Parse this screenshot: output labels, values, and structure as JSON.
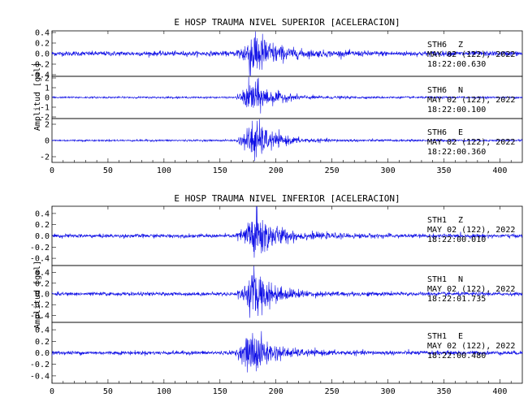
{
  "chart_data": [
    {
      "type": "line",
      "title": "E HOSP TRAUMA NIVEL SUPERIOR [ACELERACION]",
      "ylabel": "Amplitud [gal]",
      "xlim": [
        0,
        420
      ],
      "x_ticks": [
        "0",
        "50",
        "100",
        "150",
        "200",
        "250",
        "300",
        "350",
        "400"
      ],
      "series": [
        {
          "station": "STH6",
          "component": "Z",
          "date": "MAY 02 (122), 2022",
          "time": "18:22:00.630",
          "ylim": [
            -0.4,
            0.4
          ],
          "y_ticks": [
            "0.4",
            "0.2",
            "0.0",
            "-0.2",
            "-0.4"
          ],
          "onset": 165,
          "peak_time": 181,
          "peak_amplitude": 0.45,
          "noise_level": 0.04,
          "color": "#1010e6"
        },
        {
          "station": "STH6",
          "component": "N",
          "date": "MAY 02 (122), 2022",
          "time": "18:22:00.100",
          "ylim": [
            -2,
            2
          ],
          "y_ticks": [
            "2",
            "1",
            "0",
            "-1",
            "-2"
          ],
          "onset": 165,
          "peak_time": 180,
          "peak_amplitude": 1.7,
          "noise_level": 0.08,
          "color": "#1010e6"
        },
        {
          "station": "STH6",
          "component": "E",
          "date": "MAY 02 (122), 2022",
          "time": "18:22:00.360",
          "ylim": [
            -2.5,
            2.5
          ],
          "y_ticks": [
            "2",
            "0",
            "-2"
          ],
          "onset": 165,
          "peak_time": 181,
          "peak_amplitude": 2.3,
          "noise_level": 0.1,
          "color": "#1010e6"
        }
      ]
    },
    {
      "type": "line",
      "title": "E HOSP TRAUMA NIVEL INFERIOR [ACELERACION]",
      "ylabel": "Amplitud [gal]",
      "xlim": [
        0,
        420
      ],
      "x_ticks": [
        "0",
        "50",
        "100",
        "150",
        "200",
        "250",
        "300",
        "350",
        "400"
      ],
      "series": [
        {
          "station": "STH1",
          "component": "Z",
          "date": "MAY 02 (122), 2022",
          "time": "18:22:00.010",
          "ylim": [
            -0.5,
            0.5
          ],
          "y_ticks": [
            "0.4",
            "0.2",
            "0.0",
            "-0.2",
            "-0.4"
          ],
          "onset": 165,
          "peak_time": 182,
          "peak_amplitude": 0.45,
          "noise_level": 0.03,
          "color": "#1010e6"
        },
        {
          "station": "STH1",
          "component": "N",
          "date": "MAY 02 (122), 2022",
          "time": "18:22:01.735",
          "ylim": [
            -0.5,
            0.5
          ],
          "y_ticks": [
            "0.4",
            "0.2",
            "0.0",
            "-0.2",
            "-0.4"
          ],
          "onset": 165,
          "peak_time": 182,
          "peak_amplitude": 0.4,
          "noise_level": 0.03,
          "color": "#1010e6"
        },
        {
          "station": "STH1",
          "component": "E",
          "date": "MAY 02 (122), 2022",
          "time": "18:22:00.480",
          "ylim": [
            -0.5,
            0.5
          ],
          "y_ticks": [
            "0.4",
            "0.2",
            "0.0",
            "-0.2",
            "-0.4"
          ],
          "onset": 163,
          "peak_time": 180,
          "peak_amplitude": 0.35,
          "noise_level": 0.03,
          "color": "#1010e6"
        }
      ]
    }
  ]
}
